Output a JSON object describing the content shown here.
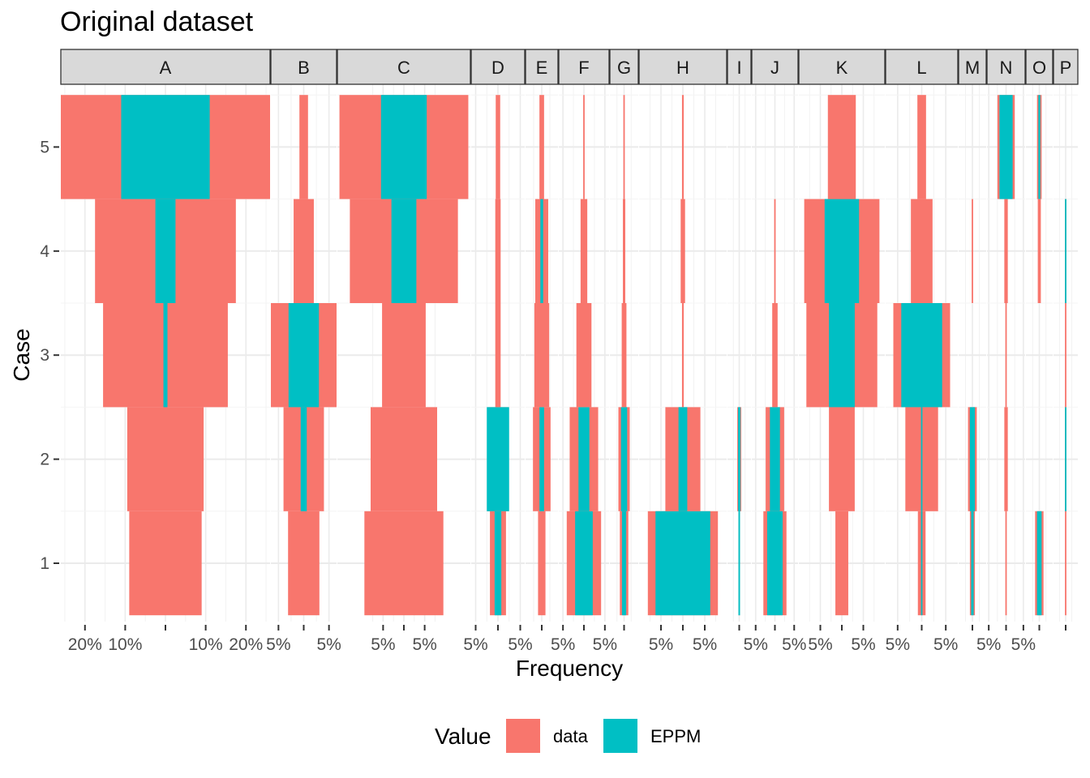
{
  "chart_data": {
    "type": "bar",
    "subtype": "faceted mirrored frequency bars (butterfly)",
    "title": "Original dataset",
    "xlabel": "Frequency",
    "ylabel": "Case",
    "y_categories": [
      "1",
      "2",
      "3",
      "4",
      "5"
    ],
    "facets": [
      "A",
      "B",
      "C",
      "D",
      "E",
      "F",
      "G",
      "H",
      "I",
      "J",
      "K",
      "L",
      "M",
      "N",
      "O",
      "P"
    ],
    "legend": {
      "title": "Value",
      "position": "bottom",
      "items": [
        {
          "label": "data",
          "color": "#F8766D"
        },
        {
          "label": "EPPM",
          "color": "#00BFC4"
        }
      ]
    },
    "colors": {
      "data": "#F8766D",
      "EPPM": "#00BFC4"
    },
    "grid": true,
    "panels": [
      {
        "facet": "A",
        "xlim": [
          -0.26,
          0.26
        ],
        "ticks": [
          {
            "v": -0.2,
            "l": "20%"
          },
          {
            "v": -0.1,
            "l": "10%"
          },
          {
            "v": 0,
            "l": ""
          },
          {
            "v": 0.1,
            "l": "10%"
          },
          {
            "v": 0.2,
            "l": "20%"
          }
        ],
        "data": [
          0.18,
          0.19,
          0.31,
          0.35,
          0.52
        ],
        "EPPM": [
          0,
          0,
          0.01,
          0.05,
          0.22
        ]
      },
      {
        "facet": "B",
        "xlim": [
          -0.065,
          0.065
        ],
        "ticks": [
          {
            "v": -0.05,
            "l": "5%"
          },
          {
            "v": 0,
            "l": ""
          },
          {
            "v": 0.05,
            "l": "5%"
          }
        ],
        "data": [
          0.062,
          0.08,
          0.13,
          0.04,
          0.017
        ],
        "EPPM": [
          0,
          0.012,
          0.06,
          0,
          0
        ]
      },
      {
        "facet": "C",
        "xlim": [
          -0.16,
          0.16
        ],
        "ticks": [
          {
            "v": -0.05,
            "l": "5%"
          },
          {
            "v": 0,
            "l": ""
          },
          {
            "v": 0.05,
            "l": "5%"
          }
        ],
        "data": [
          0.19,
          0.16,
          0.105,
          0.26,
          0.31
        ],
        "EPPM": [
          0,
          0,
          0,
          0.06,
          0.11
        ]
      },
      {
        "facet": "D",
        "xlim": [
          -0.06,
          0.06
        ],
        "ticks": [
          {
            "v": -0.05,
            "l": "5%"
          },
          {
            "v": 0,
            "l": ""
          },
          {
            "v": 0.05,
            "l": "5%"
          }
        ],
        "data": [
          0.036,
          0.048,
          0.012,
          0.012,
          0.01
        ],
        "EPPM": [
          0.015,
          0.05,
          0,
          0,
          0
        ]
      },
      {
        "facet": "E",
        "xlim": [
          -0.035,
          0.035
        ],
        "ticks": [
          {
            "v": 0,
            "l": ""
          }
        ],
        "data": [
          0.016,
          0.038,
          0.032,
          0.028,
          0.01
        ],
        "EPPM": [
          0,
          0.01,
          0,
          0.006,
          0
        ]
      },
      {
        "facet": "F",
        "xlim": [
          -0.06,
          0.06
        ],
        "ticks": [
          {
            "v": -0.05,
            "l": "5%"
          },
          {
            "v": 0,
            "l": ""
          },
          {
            "v": 0.05,
            "l": "5%"
          }
        ],
        "data": [
          0.082,
          0.068,
          0.036,
          0.016,
          0.003
        ],
        "EPPM": [
          0.042,
          0.026,
          0,
          0,
          0
        ]
      },
      {
        "facet": "G",
        "xlim": [
          -0.03,
          0.03
        ],
        "ticks": [
          {
            "v": 0,
            "l": ""
          }
        ],
        "data": [
          0.018,
          0.024,
          0.01,
          0.005,
          0.002
        ],
        "EPPM": [
          0.009,
          0.013,
          0,
          0,
          0
        ]
      },
      {
        "facet": "H",
        "xlim": [
          -0.1,
          0.1
        ],
        "ticks": [
          {
            "v": -0.05,
            "l": "5%"
          },
          {
            "v": 0,
            "l": ""
          },
          {
            "v": 0.05,
            "l": "5%"
          }
        ],
        "data": [
          0.16,
          0.08,
          0.004,
          0.01,
          0.004
        ],
        "EPPM": [
          0.125,
          0.02,
          0,
          0,
          0
        ]
      },
      {
        "facet": "I",
        "xlim": [
          -0.03,
          0.03
        ],
        "ticks": [
          {
            "v": 0,
            "l": ""
          }
        ],
        "data": [
          0.004,
          0.01,
          0,
          0,
          0
        ],
        "EPPM": [
          0.004,
          0.006,
          0,
          0,
          0
        ]
      },
      {
        "facet": "J",
        "xlim": [
          -0.06,
          0.06
        ],
        "ticks": [
          {
            "v": -0.05,
            "l": "5%"
          },
          {
            "v": 0,
            "l": ""
          },
          {
            "v": 0.05,
            "l": "5%"
          }
        ],
        "data": [
          0.06,
          0.048,
          0.014,
          0.002,
          0
        ],
        "EPPM": [
          0.04,
          0.026,
          0,
          0,
          0
        ]
      },
      {
        "facet": "K",
        "xlim": [
          -0.1,
          0.1
        ],
        "ticks": [
          {
            "v": -0.05,
            "l": "5%"
          },
          {
            "v": 0,
            "l": ""
          },
          {
            "v": 0.05,
            "l": "5%"
          }
        ],
        "data": [
          0.03,
          0.06,
          0.165,
          0.175,
          0.065
        ],
        "EPPM": [
          0,
          0,
          0.06,
          0.08,
          0
        ]
      },
      {
        "facet": "L",
        "xlim": [
          -0.075,
          0.075
        ],
        "ticks": [
          {
            "v": -0.05,
            "l": "5%"
          },
          {
            "v": 0,
            "l": ""
          },
          {
            "v": 0.05,
            "l": "5%"
          }
        ],
        "data": [
          0.016,
          0.068,
          0.118,
          0.045,
          0.018
        ],
        "EPPM": [
          0.003,
          0.003,
          0.085,
          0,
          0
        ]
      },
      {
        "facet": "M",
        "xlim": [
          -0.022,
          0.022
        ],
        "ticks": [
          {
            "v": 0,
            "l": ""
          }
        ],
        "data": [
          0.008,
          0.014,
          0,
          0.002,
          0
        ],
        "EPPM": [
          0.004,
          0.008,
          0,
          0,
          0
        ]
      },
      {
        "facet": "N",
        "xlim": [
          -0.055,
          0.055
        ],
        "ticks": [
          {
            "v": -0.05,
            "l": "5%"
          },
          {
            "v": 0,
            "l": ""
          },
          {
            "v": 0.05,
            "l": "5%"
          }
        ],
        "data": [
          0.004,
          0.01,
          0.004,
          0.01,
          0.05
        ],
        "EPPM": [
          0,
          0,
          0,
          0,
          0.038
        ]
      },
      {
        "facet": "O",
        "xlim": [
          -0.035,
          0.035
        ],
        "ticks": [
          {
            "v": 0,
            "l": ""
          }
        ],
        "data": [
          0.022,
          0,
          0,
          0.008,
          0.012
        ],
        "EPPM": [
          0.012,
          0,
          0,
          0,
          0.005
        ]
      },
      {
        "facet": "P",
        "xlim": [
          -0.035,
          0.035
        ],
        "ticks": [
          {
            "v": 0,
            "l": ""
          }
        ],
        "data": [
          0.002,
          0.004,
          0.002,
          0.004,
          0
        ],
        "EPPM": [
          0,
          0.002,
          0,
          0.004,
          0
        ]
      }
    ]
  }
}
